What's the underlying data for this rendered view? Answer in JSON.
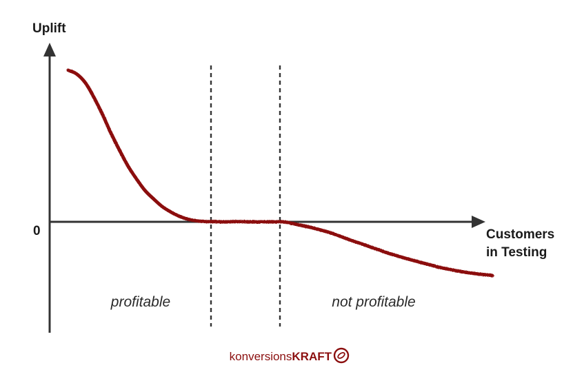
{
  "chart_data": {
    "type": "line",
    "ylabel": "Uplift",
    "xlabel_lines": [
      "Customers",
      "in Testing"
    ],
    "y_ticks": [
      "0"
    ],
    "regions": [
      {
        "label": "profitable"
      },
      {
        "label": "not profitable"
      }
    ],
    "series": [
      {
        "color": "#8b0f0f",
        "x": [
          0,
          12,
          25,
          37,
          50,
          62,
          75,
          87,
          100,
          112,
          125,
          137,
          150,
          162,
          175,
          187,
          200,
          212,
          225,
          237,
          250,
          262,
          275,
          287,
          300,
          312,
          325,
          337,
          350,
          362,
          375,
          387,
          400,
          412,
          425,
          437,
          450,
          462,
          475,
          487,
          500,
          512,
          525,
          537,
          550,
          562,
          575,
          587,
          600,
          612,
          615
        ],
        "y": [
          100,
          97.6,
          91.6,
          82.3,
          70.5,
          58.4,
          46.7,
          36.5,
          27.6,
          20.3,
          14.6,
          9.8,
          6.2,
          3.5,
          1.6,
          0.6,
          0.2,
          0.1,
          0.0,
          0.1,
          0.2,
          0.0,
          0.0,
          0.0,
          0.0,
          0.0,
          -1.1,
          -2.3,
          -3.5,
          -4.9,
          -6.5,
          -8.3,
          -10.5,
          -12.5,
          -14.4,
          -16.4,
          -18.4,
          -20.4,
          -22.2,
          -23.8,
          -25.4,
          -26.9,
          -28.4,
          -29.9,
          -31.1,
          -32.2,
          -33.2,
          -34.0,
          -34.7,
          -35.2,
          -35.5
        ],
        "range": {
          "x": [
            0,
            640
          ],
          "y": [
            -75,
            110
          ]
        }
      }
    ],
    "dividers_x": [
      207,
      307
    ],
    "axis_color": "#333333"
  },
  "footer": {
    "brand_light": "konversions",
    "brand_bold": "KRAFT",
    "brand_color": "#8b0f0f"
  }
}
